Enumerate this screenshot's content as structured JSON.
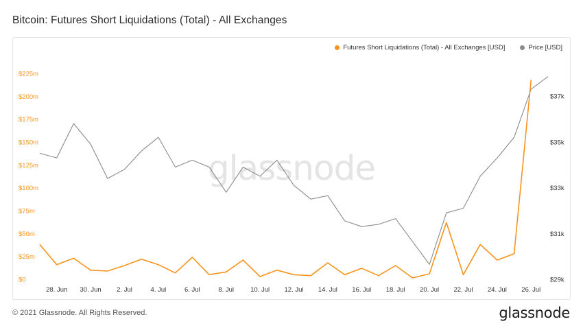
{
  "title": "Bitcoin: Futures Short Liquidations (Total) - All Exchanges",
  "footer": {
    "copyright": "© 2021 Glassnode. All Rights Reserved.",
    "logo_text": "glassnode"
  },
  "watermark": "glassnode",
  "colors": {
    "liquidations": "#f7931a",
    "price": "#8a8a8a",
    "left_axis": "#f7931a",
    "right_axis": "#333333"
  },
  "chart_data": {
    "type": "line",
    "legend_position": "top-right",
    "grid": false,
    "x": [
      "27. Jun",
      "28. Jun",
      "29. Jun",
      "30. Jun",
      "1. Jul",
      "2. Jul",
      "3. Jul",
      "4. Jul",
      "5. Jul",
      "6. Jul",
      "7. Jul",
      "8. Jul",
      "9. Jul",
      "10. Jul",
      "11. Jul",
      "12. Jul",
      "13. Jul",
      "14. Jul",
      "15. Jul",
      "16. Jul",
      "17. Jul",
      "18. Jul",
      "19. Jul",
      "20. Jul",
      "21. Jul",
      "22. Jul",
      "23. Jul",
      "24. Jul",
      "25. Jul",
      "26. Jul",
      "27. Jul"
    ],
    "x_ticks": [
      "28. Jun",
      "30. Jun",
      "2. Jul",
      "4. Jul",
      "6. Jul",
      "8. Jul",
      "10. Jul",
      "12. Jul",
      "14. Jul",
      "16. Jul",
      "18. Jul",
      "20. Jul",
      "22. Jul",
      "24. Jul",
      "26. Jul"
    ],
    "series": [
      {
        "name": "Futures Short Liquidations (Total) - All Exchanges [USD]",
        "axis": "left",
        "unit": "USD",
        "values": [
          38000000,
          16000000,
          23000000,
          10000000,
          9000000,
          15000000,
          22000000,
          16000000,
          7000000,
          24000000,
          5000000,
          8000000,
          21000000,
          3000000,
          10000000,
          5000000,
          4000000,
          18000000,
          5000000,
          12000000,
          4000000,
          15000000,
          1500000,
          6000000,
          62000000,
          5000000,
          38000000,
          21000000,
          28000000,
          218000000,
          null
        ]
      },
      {
        "name": "Price [USD]",
        "axis": "right",
        "unit": "USD",
        "values": [
          34500,
          34300,
          35800,
          34900,
          33400,
          33800,
          34600,
          35200,
          33900,
          34200,
          33900,
          32800,
          33900,
          33500,
          34200,
          33100,
          32500,
          32650,
          31550,
          31300,
          31400,
          31650,
          30650,
          29650,
          31900,
          32100,
          33500,
          34300,
          35200,
          37300,
          37850
        ]
      }
    ],
    "left_axis": {
      "ticks": [
        "$0",
        "$25m",
        "$50m",
        "$75m",
        "$100m",
        "$125m",
        "$150m",
        "$175m",
        "$200m",
        "$225m"
      ],
      "range": [
        0,
        225000000
      ]
    },
    "right_axis": {
      "ticks": [
        "$29k",
        "$31k",
        "$33k",
        "$35k",
        "$37k"
      ],
      "range": [
        29000,
        37000
      ]
    }
  }
}
